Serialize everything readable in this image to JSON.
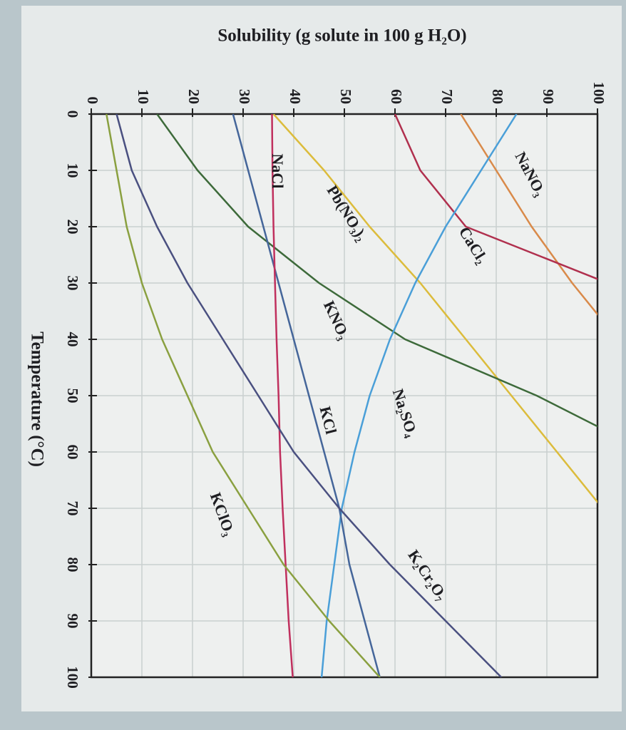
{
  "chart_data": {
    "type": "line",
    "ylabel": "Solubility (g solute in 100 g H₂O)",
    "xlabel": "Temperature (°C)",
    "x": [
      0,
      10,
      20,
      30,
      40,
      50,
      60,
      70,
      80,
      90,
      100
    ],
    "xlim": [
      0,
      100
    ],
    "xticks": [
      0,
      10,
      20,
      30,
      40,
      50,
      60,
      70,
      80,
      90,
      100
    ],
    "ylim": [
      0,
      100
    ],
    "yticks": [
      0,
      10,
      20,
      30,
      40,
      50,
      60,
      70,
      80,
      90,
      100
    ],
    "grid": true,
    "series": [
      {
        "name": "NaNO₃",
        "color": "#d98a4a",
        "values": [
          73,
          80,
          87,
          95,
          104,
          null,
          null,
          null,
          null,
          null,
          null
        ]
      },
      {
        "name": "CaCl₂",
        "color": "#b0304e",
        "values": [
          60,
          65,
          74,
          102,
          null,
          null,
          null,
          null,
          null,
          null,
          null
        ]
      },
      {
        "name": "Pb(NO₃)₂",
        "color": "#dcbc3c",
        "values": [
          36,
          46,
          55,
          65,
          74,
          83,
          92,
          101,
          null,
          null,
          null
        ]
      },
      {
        "name": "KNO₃",
        "color": "#3d6a3a",
        "values": [
          13,
          21,
          31,
          45,
          62,
          88,
          110,
          null,
          null,
          null,
          null
        ]
      },
      {
        "name": "Na₂SO₄",
        "color": "#4a9fd8",
        "values": [
          84,
          77,
          70,
          64,
          59,
          55,
          52,
          49.5,
          48,
          46.5,
          45.5
        ]
      },
      {
        "name": "KCl",
        "color": "#45669a",
        "values": [
          28,
          31,
          34,
          37,
          40,
          43,
          46,
          49,
          51,
          54,
          57
        ]
      },
      {
        "name": "NaCl",
        "color": "#c0305e",
        "values": [
          35.7,
          35.8,
          36,
          36.3,
          36.6,
          37,
          37.3,
          37.8,
          38.4,
          39,
          39.8
        ]
      },
      {
        "name": "K₂Cr₂O₇",
        "color": "#4a5080",
        "values": [
          5,
          8,
          13,
          19,
          26,
          33,
          40,
          49,
          59,
          70,
          81
        ]
      },
      {
        "name": "KClO₃",
        "color": "#8aa040",
        "values": [
          3,
          5,
          7,
          10,
          14,
          19,
          24,
          31,
          38,
          47,
          57
        ]
      }
    ]
  }
}
